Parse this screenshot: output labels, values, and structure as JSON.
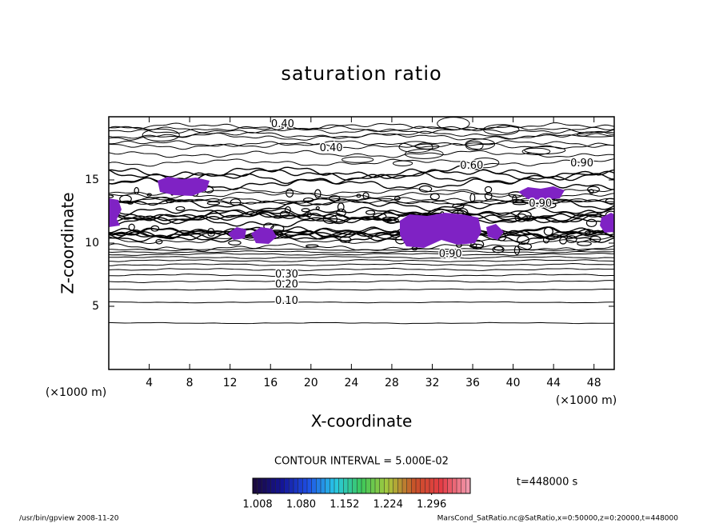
{
  "chart_data": {
    "type": "contour",
    "title": "saturation ratio",
    "x_label": "X-coordinate",
    "y_label": "Z-coordinate",
    "x_unit": "(×1000 m)",
    "y_unit": "(×1000 m)",
    "xlim": [
      0,
      50
    ],
    "ylim": [
      0,
      20
    ],
    "xticks": [
      4,
      8,
      12,
      16,
      20,
      24,
      28,
      32,
      36,
      40,
      44,
      48
    ],
    "yticks": [
      5,
      10,
      15
    ],
    "fill_color": "#7f22c4",
    "contour_labels": [
      {
        "text": "0.40",
        "x": 17.2,
        "z": 19.4
      },
      {
        "text": "0.40",
        "x": 22.0,
        "z": 17.5
      },
      {
        "text": "0.60",
        "x": 35.9,
        "z": 16.1
      },
      {
        "text": "0.90",
        "x": 46.8,
        "z": 16.3
      },
      {
        "text": "0.90",
        "x": 42.7,
        "z": 13.1
      },
      {
        "text": "0.90",
        "x": 33.8,
        "z": 9.1
      },
      {
        "text": "0.30",
        "x": 17.6,
        "z": 7.5
      },
      {
        "text": "0.20",
        "x": 17.6,
        "z": 6.7
      },
      {
        "text": "0.10",
        "x": 17.6,
        "z": 5.4
      }
    ],
    "contour_interval": "CONTOUR INTERVAL = 5.000E-02",
    "time_label": "t=448000 s",
    "colorbar": {
      "lim": [
        1.0,
        1.36
      ],
      "ticks": [
        1.008,
        {
          "value": 1.08,
          "label": "1.080"
        },
        1.152,
        1.224,
        1.296
      ]
    },
    "footer_left": "/usr/bin/gpview  2008-11-20",
    "footer_right": "MarsCond_SatRatio.nc@SatRatio,x=0:50000,z=0:20000,t=448000"
  }
}
